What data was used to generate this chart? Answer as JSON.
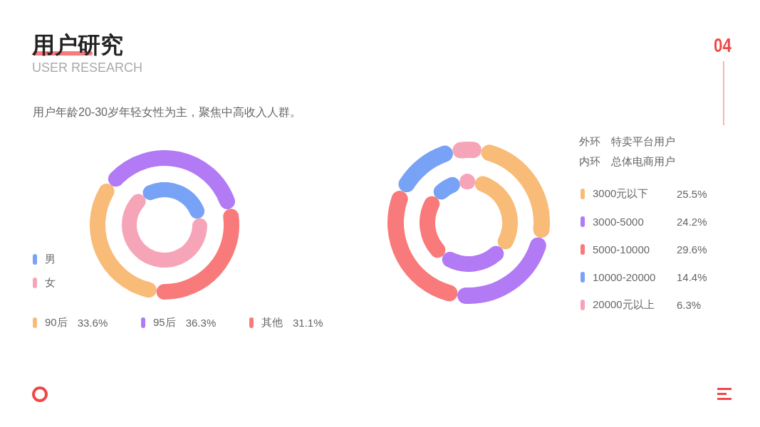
{
  "chart_data": [
    {
      "type": "donut",
      "title": "用户研究",
      "subtitle": "USER RESEARCH",
      "annotations": [
        "用户年龄20-30岁年轻女性为主，聚焦中高收入人群。",
        "04"
      ],
      "categories": [
        "男",
        "女",
        "90后",
        "95后",
        "其他"
      ],
      "colors": [
        "#78a2f5",
        "#f6a5b8",
        "#f8bb78",
        "#b27af5",
        "#f87a7a"
      ],
      "series": [
        {
          "values": [
            null,
            null,
            33.6,
            36.3,
            31.1
          ],
          "value_labels": [
            null,
            null,
            "33.6%",
            "36.3%",
            "31.1%"
          ]
        },
        {
          "values": [
            32,
            68,
            null,
            null,
            null
          ]
        }
      ],
      "legend": "bottom"
    },
    {
      "type": "donut",
      "categories": [
        "3000元以下",
        "3000-5000",
        "5000-10000",
        "10000-20000",
        "20000元以上"
      ],
      "colors": [
        "#f8bb78",
        "#b27af5",
        "#f87a7a",
        "#78a2f5",
        "#f6a5b8"
      ],
      "series": [
        {
          "name": "外环　特卖平台用户",
          "values": [
            25.5,
            24.2,
            29.6,
            14.4,
            6.3
          ],
          "value_labels": [
            "25.5%",
            "24.2%",
            "29.6%",
            "14.4%",
            "6.3%"
          ]
        },
        {
          "name": "内环　总体电商用户",
          "values": [
            33,
            25,
            25,
            11,
            6
          ]
        }
      ],
      "legend": "right"
    }
  ]
}
